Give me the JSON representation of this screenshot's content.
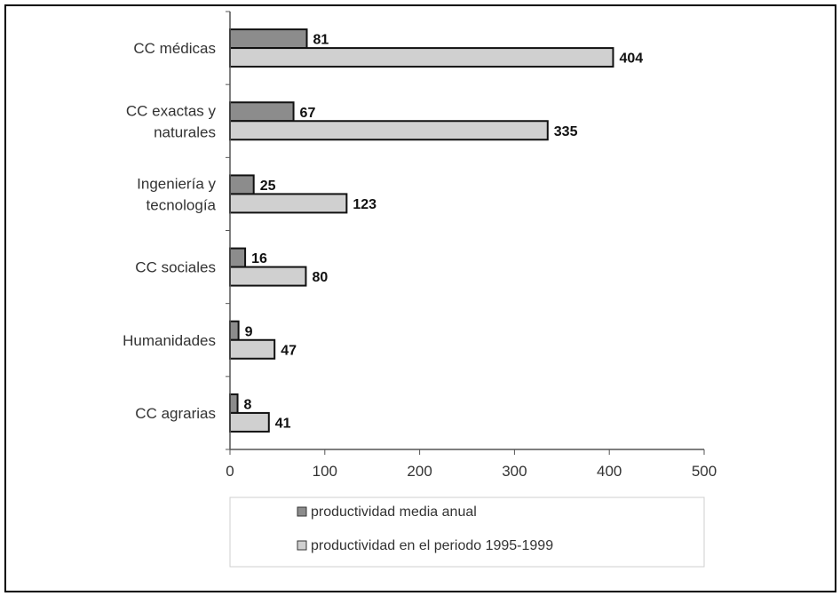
{
  "chart_data": {
    "type": "bar",
    "orientation": "horizontal",
    "categories": [
      [
        "CC médicas"
      ],
      [
        "CC exactas y",
        "naturales"
      ],
      [
        "Ingeniería y",
        "tecnología"
      ],
      [
        "CC sociales"
      ],
      [
        "Humanidades"
      ],
      [
        "CC agrarias"
      ]
    ],
    "series": [
      {
        "name": "productividad media anual",
        "values": [
          81,
          67,
          25,
          16,
          9,
          8
        ],
        "color": "#8c8c8c"
      },
      {
        "name": "productividad en el periodo 1995-1999",
        "values": [
          404,
          335,
          123,
          80,
          47,
          41
        ],
        "color": "#d0d0d0"
      }
    ],
    "xlim": [
      0,
      500
    ],
    "xticks": [
      0,
      100,
      200,
      300,
      400,
      500
    ],
    "grid": false,
    "legend_position": "bottom"
  }
}
